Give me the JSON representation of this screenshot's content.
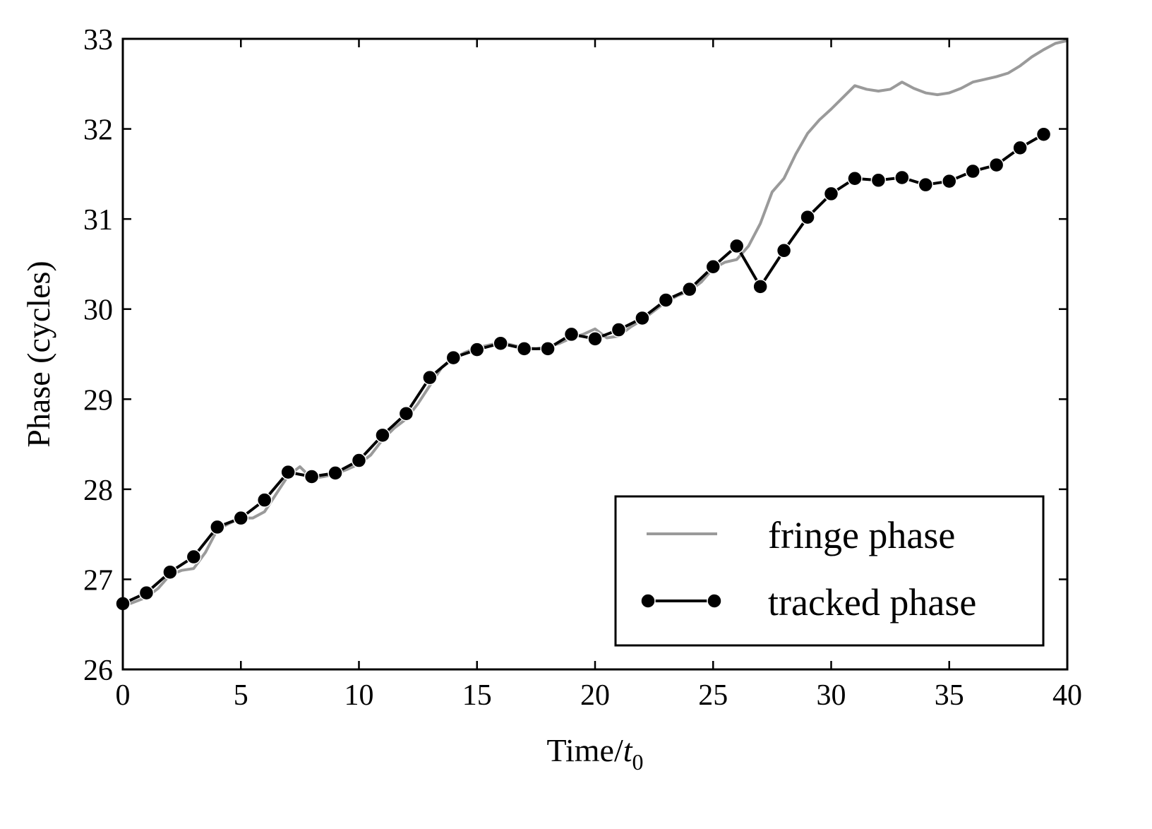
{
  "chart_data": {
    "type": "line",
    "title": "",
    "xlabel_main": "Time/",
    "xlabel_var": "t",
    "xlabel_sub": "0",
    "ylabel": "Phase (cycles)",
    "xlim": [
      0,
      40
    ],
    "ylim": [
      26,
      33
    ],
    "xticks": [
      0,
      5,
      10,
      15,
      20,
      25,
      30,
      35,
      40
    ],
    "yticks": [
      26,
      27,
      28,
      29,
      30,
      31,
      32,
      33
    ],
    "legend_position": "lower-right",
    "grid": false,
    "colors": {
      "fringe": "#9a9a9a",
      "tracked": "#000000"
    },
    "series": [
      {
        "name": "fringe phase",
        "style": "line",
        "x": [
          0,
          0.5,
          1,
          1.5,
          2,
          2.5,
          3,
          3.5,
          4,
          4.5,
          5,
          5.5,
          6,
          6.5,
          7,
          7.5,
          8,
          8.5,
          9,
          9.5,
          10,
          10.5,
          11,
          11.5,
          12,
          12.5,
          13,
          13.5,
          14,
          14.5,
          15,
          15.5,
          16,
          16.5,
          17,
          17.5,
          18,
          18.5,
          19,
          19.5,
          20,
          20.5,
          21,
          21.5,
          22,
          22.5,
          23,
          23.5,
          24,
          24.5,
          25,
          25.5,
          26,
          26.5,
          27,
          27.5,
          28,
          28.5,
          29,
          29.5,
          30,
          30.5,
          31,
          31.5,
          32,
          32.5,
          33,
          33.5,
          34,
          34.5,
          35,
          35.5,
          36,
          36.5,
          37,
          37.5,
          38,
          38.5,
          39,
          39.5,
          40
        ],
        "y": [
          26.7,
          26.75,
          26.8,
          26.9,
          27.05,
          27.1,
          27.12,
          27.3,
          27.55,
          27.62,
          27.68,
          27.68,
          27.75,
          27.95,
          28.15,
          28.25,
          28.12,
          28.14,
          28.17,
          28.22,
          28.28,
          28.38,
          28.55,
          28.68,
          28.78,
          28.95,
          29.15,
          29.35,
          29.45,
          29.52,
          29.57,
          29.6,
          29.63,
          29.6,
          29.57,
          29.56,
          29.58,
          29.62,
          29.68,
          29.72,
          29.78,
          29.68,
          29.7,
          29.8,
          29.88,
          29.98,
          30.08,
          30.15,
          30.2,
          30.3,
          30.45,
          30.52,
          30.55,
          30.7,
          30.95,
          31.3,
          31.45,
          31.72,
          31.95,
          32.1,
          32.22,
          32.35,
          32.48,
          32.44,
          32.42,
          32.44,
          32.52,
          32.45,
          32.4,
          32.38,
          32.4,
          32.45,
          32.52,
          32.55,
          32.58,
          32.62,
          32.7,
          32.8,
          32.88,
          32.95,
          32.98
        ]
      },
      {
        "name": "tracked phase",
        "style": "line-marker",
        "x": [
          0,
          1,
          2,
          3,
          4,
          5,
          6,
          7,
          8,
          9,
          10,
          11,
          12,
          13,
          14,
          15,
          16,
          17,
          18,
          19,
          20,
          21,
          22,
          23,
          24,
          25,
          26,
          27,
          28,
          29,
          30,
          31,
          32,
          33,
          34,
          35,
          36,
          37,
          38,
          39
        ],
        "y": [
          26.73,
          26.85,
          27.08,
          27.25,
          27.58,
          27.68,
          27.88,
          28.19,
          28.14,
          28.18,
          28.32,
          28.6,
          28.84,
          29.24,
          29.46,
          29.55,
          29.62,
          29.56,
          29.56,
          29.72,
          29.67,
          29.77,
          29.9,
          30.1,
          30.22,
          30.47,
          30.7,
          30.25,
          30.65,
          31.02,
          31.28,
          31.45,
          31.43,
          31.46,
          31.38,
          31.42,
          31.53,
          31.6,
          31.79,
          31.94
        ]
      }
    ]
  }
}
